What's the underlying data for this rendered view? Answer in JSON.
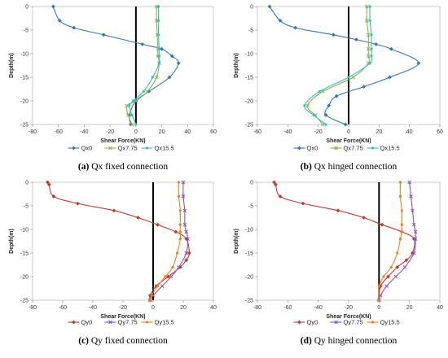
{
  "chart_data": [
    {
      "type": "line",
      "caption_label": "(a)",
      "caption_text": " Qx fixed connection",
      "xlabel": "Shear Force(KN)",
      "ylabel": "Depth(m)",
      "xlim": [
        -80,
        60
      ],
      "ylim": [
        -25,
        0
      ],
      "xticks": [
        -80,
        -60,
        -40,
        -20,
        0,
        20,
        40,
        60
      ],
      "yticks": [
        0,
        -5,
        -10,
        -15,
        -20,
        -25
      ],
      "grid": false,
      "legend_position": "bottom",
      "series": [
        {
          "name": "Qx0",
          "color": "#2e75b6",
          "x": [
            -64,
            -59,
            -48,
            -25,
            5,
            20,
            28,
            33,
            26,
            10,
            0,
            -5,
            -4
          ],
          "y": [
            0,
            -3,
            -4.5,
            -6,
            -8,
            -9,
            -10.5,
            -12,
            -15,
            -18,
            -20,
            -23,
            -25
          ]
        },
        {
          "name": "Qx7.75",
          "color": "#8db33e",
          "x": [
            16,
            16,
            16.5,
            17,
            17,
            18,
            16,
            9,
            0,
            -7,
            -6,
            -3
          ],
          "y": [
            0,
            -3,
            -6,
            -9,
            -10.5,
            -12,
            -15,
            -18,
            -20,
            -21,
            -23,
            -25
          ]
        },
        {
          "name": "Qx15.5",
          "color": "#33bccc",
          "x": [
            17.5,
            17.5,
            17.5,
            18,
            18,
            18,
            13,
            6,
            -2,
            -5,
            -3,
            0
          ],
          "y": [
            0,
            -3,
            -6,
            -9,
            -10.5,
            -12,
            -15,
            -18,
            -20,
            -21,
            -23,
            -25
          ]
        }
      ]
    },
    {
      "type": "line",
      "caption_label": "(b)",
      "caption_text": " Qx hinged connection",
      "xlabel": "Shear Force(KN)",
      "ylabel": "Depth(m)",
      "xlim": [
        -60,
        60
      ],
      "ylim": [
        -25,
        0
      ],
      "xticks": [
        -60,
        -40,
        -20,
        0,
        20,
        40,
        60
      ],
      "yticks": [
        0,
        -5,
        -10,
        -15,
        -20,
        -25
      ],
      "grid": false,
      "legend_position": "bottom",
      "series": [
        {
          "name": "Qx0",
          "color": "#2e75b6",
          "x": [
            -52,
            -45,
            -35,
            -10,
            5,
            18,
            28,
            46,
            27,
            10,
            -8,
            -13,
            -15,
            -2
          ],
          "y": [
            0,
            -3,
            -4.5,
            -6,
            -7,
            -8,
            -9,
            -12,
            -15,
            -17,
            -19,
            -21,
            -23,
            -25
          ]
        },
        {
          "name": "Qx7.75",
          "color": "#8db33e",
          "x": [
            12,
            12,
            13,
            13,
            13,
            13,
            3,
            -17,
            -27,
            -22,
            -17
          ],
          "y": [
            0,
            -3,
            -6,
            -9,
            -10.5,
            -12,
            -15,
            -18,
            -21,
            -23,
            -25
          ]
        },
        {
          "name": "Qx15.5",
          "color": "#33bccc",
          "x": [
            14,
            14,
            15,
            15,
            15,
            14,
            0,
            -19,
            -29,
            -23,
            -15
          ],
          "y": [
            0,
            -3,
            -6,
            -9,
            -10.5,
            -12,
            -15,
            -18,
            -21,
            -23,
            -25
          ]
        }
      ]
    },
    {
      "type": "line",
      "caption_label": "(c)",
      "caption_text": " Qy fixed connection",
      "xlabel": "Shear Force(KN)",
      "ylabel": "Depth(m)",
      "xlim": [
        -80,
        40
      ],
      "ylim": [
        -25,
        0
      ],
      "xticks": [
        -80,
        -60,
        -40,
        -20,
        0,
        20,
        40
      ],
      "yticks": [
        0,
        -5,
        -10,
        -15,
        -20,
        -25
      ],
      "grid": false,
      "legend_position": "bottom",
      "series": [
        {
          "name": "Qy0",
          "color": "#c0392b",
          "x": [
            -70,
            -69,
            -66,
            -50,
            -26,
            -10,
            3,
            15,
            22,
            24,
            22,
            18,
            10,
            2,
            -2,
            -2
          ],
          "y": [
            0,
            -0.5,
            -3,
            -4.5,
            -6,
            -7.5,
            -9,
            -10.5,
            -12,
            -15,
            -16.5,
            -18,
            -20,
            -22,
            -24,
            -25
          ]
        },
        {
          "name": "Qy7.75",
          "color": "#7e57c2",
          "x": [
            20,
            20,
            21,
            21,
            22,
            23,
            22,
            17,
            12,
            6,
            0,
            -2
          ],
          "y": [
            0,
            -3,
            -6,
            -9,
            -10.5,
            -12,
            -15,
            -18,
            -20,
            -22,
            -24,
            -25
          ]
        },
        {
          "name": "Qy15.5",
          "color": "#f07e1c",
          "x": [
            17,
            17,
            18,
            18,
            18,
            18,
            16,
            13,
            8,
            3,
            -1,
            -2
          ],
          "y": [
            0,
            -3,
            -6,
            -9,
            -10.5,
            -12,
            -15,
            -18,
            -20,
            -22,
            -24,
            -25
          ]
        }
      ]
    },
    {
      "type": "line",
      "caption_label": "(d)",
      "caption_text": " Qy hinged connection",
      "xlabel": "Shear Force(KN)",
      "ylabel": "Depth(m)",
      "xlim": [
        -80,
        40
      ],
      "ylim": [
        -25,
        0
      ],
      "xticks": [
        -80,
        -60,
        -40,
        -20,
        0,
        20,
        40
      ],
      "yticks": [
        0,
        -5,
        -10,
        -15,
        -20,
        -25
      ],
      "grid": false,
      "legend_position": "bottom",
      "series": [
        {
          "name": "Qy0",
          "color": "#c0392b",
          "x": [
            -69,
            -68,
            -65,
            -50,
            -27,
            -10,
            2,
            15,
            23,
            22,
            18,
            12,
            6,
            1,
            0
          ],
          "y": [
            0,
            -0.5,
            -3,
            -4.5,
            -6,
            -7.5,
            -9,
            -10.5,
            -12,
            -15,
            -16.5,
            -18,
            -20,
            -22,
            -25
          ]
        },
        {
          "name": "Qy7.75",
          "color": "#7e57c2",
          "x": [
            20,
            21,
            22,
            23,
            24,
            24,
            23,
            17,
            11,
            5,
            1,
            0
          ],
          "y": [
            0,
            -3,
            -6,
            -9,
            -10.5,
            -12,
            -15,
            -18,
            -20,
            -22,
            -24,
            -25
          ]
        },
        {
          "name": "Qy15.5",
          "color": "#f07e1c",
          "x": [
            14,
            14,
            15,
            15,
            15,
            14,
            12,
            8,
            3,
            0,
            0
          ],
          "y": [
            0,
            -3,
            -6,
            -9,
            -10.5,
            -12,
            -15,
            -18,
            -20,
            -22,
            -25
          ]
        }
      ]
    }
  ]
}
